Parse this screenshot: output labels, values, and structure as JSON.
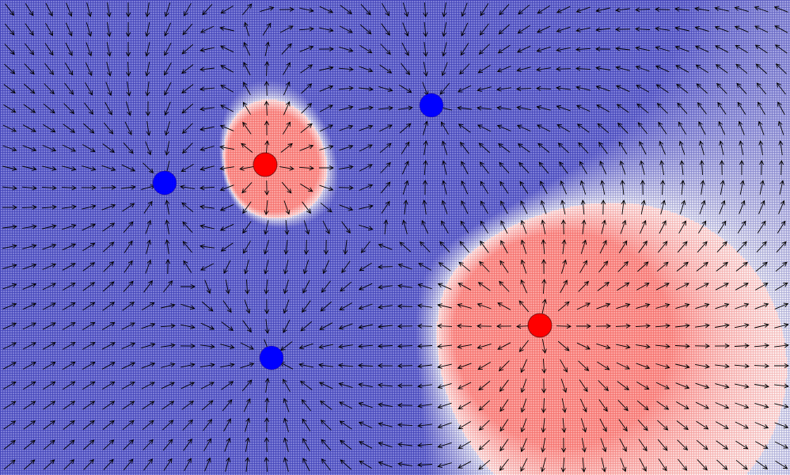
{
  "colors": {
    "positive": "#ff0000",
    "negative": "#0000ff",
    "positive_region": "#f4b3b0",
    "negative_region": "#8f90e0",
    "boundary": "#ffffff",
    "arrow": "#000000"
  },
  "charges": [
    {
      "id": "blue-1",
      "sign": "negative"
    },
    {
      "id": "red-1",
      "sign": "positive"
    },
    {
      "id": "blue-2",
      "sign": "negative"
    },
    {
      "id": "blue-3",
      "sign": "negative"
    },
    {
      "id": "red-2",
      "sign": "positive"
    }
  ]
}
